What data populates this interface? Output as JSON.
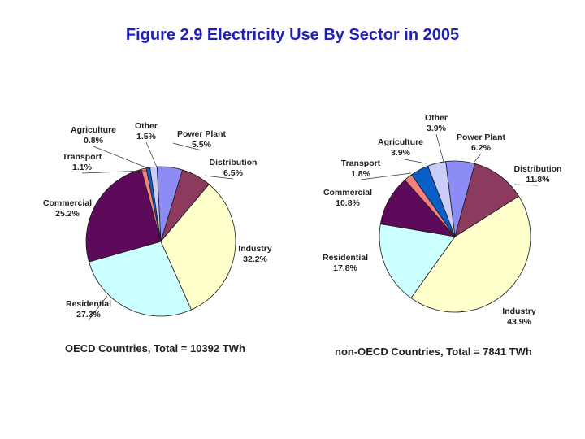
{
  "title": "Figure 2.9 Electricity Use By Sector in 2005",
  "chart_data": [
    {
      "type": "pie",
      "caption": "OECD Countries, Total = 10392 TWh",
      "slices": [
        {
          "name": "Power Plant",
          "value": 5.5,
          "label": "5.5%",
          "color": "#8c8cf4"
        },
        {
          "name": "Distribution",
          "value": 6.5,
          "label": "6.5%",
          "color": "#8c3a5e"
        },
        {
          "name": "Industry",
          "value": 32.2,
          "label": "32.2%",
          "color": "#ffffcc"
        },
        {
          "name": "Residential",
          "value": 27.3,
          "label": "27.3%",
          "color": "#ccffff"
        },
        {
          "name": "Commercial",
          "value": 25.2,
          "label": "25.2%",
          "color": "#5e0a5a"
        },
        {
          "name": "Transport",
          "value": 1.1,
          "label": "1.1%",
          "color": "#f48080"
        },
        {
          "name": "Agriculture",
          "value": 0.8,
          "label": "0.8%",
          "color": "#0a5ec8"
        },
        {
          "name": "Other",
          "value": 1.5,
          "label": "1.5%",
          "color": "#ccccf8"
        }
      ]
    },
    {
      "type": "pie",
      "caption": "non-OECD Countries, Total = 7841 TWh",
      "slices": [
        {
          "name": "Power Plant",
          "value": 6.2,
          "label": "6.2%",
          "color": "#8c8cf4"
        },
        {
          "name": "Distribution",
          "value": 11.8,
          "label": "11.8%",
          "color": "#8c3a5e"
        },
        {
          "name": "Industry",
          "value": 43.9,
          "label": "43.9%",
          "color": "#ffffcc"
        },
        {
          "name": "Residential",
          "value": 17.8,
          "label": "17.8%",
          "color": "#ccffff"
        },
        {
          "name": "Commercial",
          "value": 10.8,
          "label": "10.8%",
          "color": "#5e0a5a"
        },
        {
          "name": "Transport",
          "value": 1.8,
          "label": "1.8%",
          "color": "#f48080"
        },
        {
          "name": "Agriculture",
          "value": 3.9,
          "label": "3.9%",
          "color": "#0a5ec8"
        },
        {
          "name": "Other",
          "value": 3.9,
          "label": "3.9%",
          "color": "#ccccf8"
        }
      ]
    }
  ]
}
